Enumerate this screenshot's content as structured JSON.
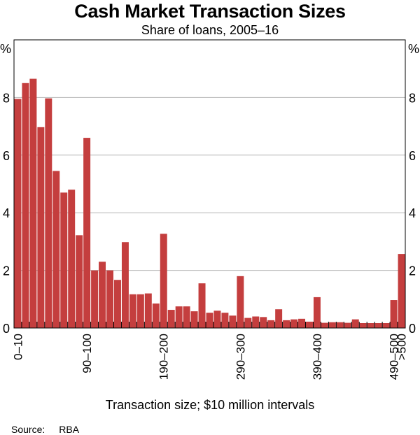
{
  "chart_data": {
    "type": "bar",
    "title": "Cash Market Transaction Sizes",
    "subtitle": "Share of loans, 2005–16",
    "xlabel": "Transaction size; $10 million intervals",
    "ylabel_left": "%",
    "ylabel_right": "%",
    "ylim": [
      0,
      10
    ],
    "yticks": [
      0,
      2,
      4,
      6,
      8
    ],
    "grid": true,
    "bar_color": "#c43e3e",
    "source_label": "Source:",
    "source": "RBA",
    "categories": [
      "0–10",
      "10–20",
      "20–30",
      "30–40",
      "40–50",
      "50–60",
      "60–70",
      "70–80",
      "80–90",
      "90–100",
      "100–110",
      "110–120",
      "120–130",
      "130–140",
      "140–150",
      "150–160",
      "160–170",
      "170–180",
      "180–190",
      "190–200",
      "200–210",
      "210–220",
      "220–230",
      "230–240",
      "240–250",
      "250–260",
      "260–270",
      "270–280",
      "280–290",
      "290–300",
      "300–310",
      "310–320",
      "320–330",
      "330–340",
      "340–350",
      "350–360",
      "360–370",
      "370–380",
      "380–390",
      "390–400",
      "400–410",
      "410–420",
      "420–430",
      "430–440",
      "440–450",
      "450–460",
      "460–470",
      "470–480",
      "480–490",
      "490–500",
      ">500"
    ],
    "values": [
      7.95,
      8.5,
      8.65,
      6.97,
      7.97,
      5.45,
      4.7,
      4.8,
      3.22,
      6.6,
      2.0,
      2.3,
      2.0,
      1.67,
      2.98,
      1.17,
      1.17,
      1.2,
      0.85,
      3.27,
      0.63,
      0.75,
      0.75,
      0.58,
      1.55,
      0.53,
      0.6,
      0.53,
      0.43,
      1.8,
      0.35,
      0.4,
      0.38,
      0.27,
      0.65,
      0.27,
      0.3,
      0.32,
      0.22,
      1.07,
      0.18,
      0.2,
      0.2,
      0.18,
      0.3,
      0.17,
      0.17,
      0.17,
      0.17,
      0.97,
      2.57
    ],
    "xtick_labels": [
      "0–10",
      "90–100",
      "190–200",
      "290–300",
      "390–400",
      "490–500",
      ">500"
    ],
    "xtick_indices": [
      0,
      9,
      19,
      29,
      39,
      49,
      50
    ]
  }
}
